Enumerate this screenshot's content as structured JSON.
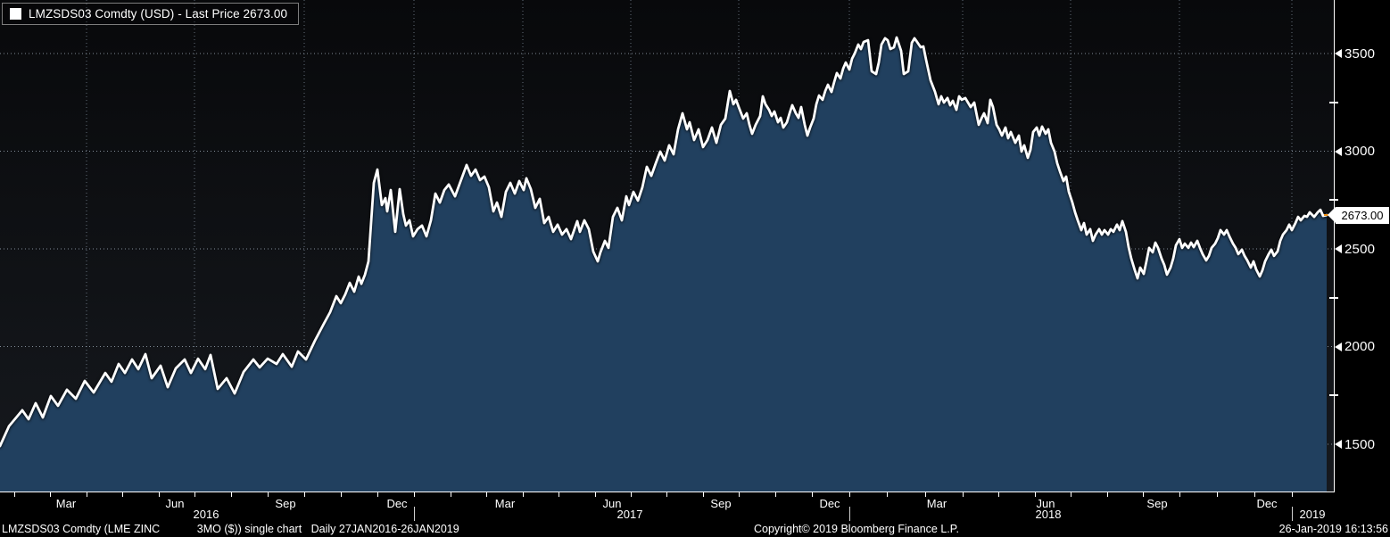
{
  "legend": {
    "label": "LMZSDS03 Comdty (USD) - Last Price 2673.00",
    "swatch_color": "#ffffff"
  },
  "colors": {
    "background": "#000000",
    "plot_bg_top": "#08090b",
    "plot_bg_bottom": "#16191e",
    "fill_top": "#0e2136",
    "fill_bottom": "#21405f",
    "line": "#ffffff",
    "grid_h": "rgba(168,181,195,0.75)",
    "grid_v": "rgba(148,163,180,0.65)",
    "last_price_accent": "#ef9115",
    "axis_text": "#ffffff"
  },
  "y_axis": {
    "ticks": [
      3500,
      3000,
      2500,
      2000,
      1500
    ],
    "minor_ticks": [
      3250,
      2750,
      2250,
      1750
    ],
    "last_price": "2673.00"
  },
  "x_axis": {
    "month_labels": [
      {
        "label": "Mar",
        "x": 74
      },
      {
        "label": "Jun",
        "x": 196
      },
      {
        "label": "Sep",
        "x": 320
      },
      {
        "label": "Dec",
        "x": 445
      },
      {
        "label": "Mar",
        "x": 566
      },
      {
        "label": "Jun",
        "x": 686
      },
      {
        "label": "Sep",
        "x": 808
      },
      {
        "label": "Dec",
        "x": 930
      },
      {
        "label": "Mar",
        "x": 1050
      },
      {
        "label": "Jun",
        "x": 1172
      },
      {
        "label": "Sep",
        "x": 1297
      },
      {
        "label": "Dec",
        "x": 1420
      }
    ],
    "year_labels": [
      {
        "label": "2016",
        "x": 231
      },
      {
        "label": "2017",
        "x": 706
      },
      {
        "label": "2018",
        "x": 1175
      },
      {
        "label": "2019",
        "x": 1471
      }
    ],
    "year_separators_x": [
      464,
      952,
      1448
    ],
    "month_ticks_x": [
      16,
      56,
      97,
      137,
      178,
      218,
      259,
      300,
      341,
      382,
      423,
      464,
      505,
      545,
      586,
      626,
      667,
      707,
      747,
      788,
      828,
      869,
      910,
      952,
      994,
      1037,
      1079,
      1119,
      1160,
      1200,
      1241,
      1281,
      1322,
      1364,
      1406,
      1448
    ]
  },
  "status_bar": {
    "left": "LMZSDS03 Comdty (LME ZINC            3MO ($)) single chart   Daily 27JAN2016-26JAN2019",
    "center": "Copyright© 2019 Bloomberg Finance L.P.",
    "right": "26-Jan-2019 16:13:56"
  },
  "chart_data": {
    "type": "area",
    "title": "LMZSDS03 Comdty (USD) - Last Price 2673.00",
    "x_domain": [
      "27JAN2016",
      "26JAN2019"
    ],
    "x_unit": "plot pixels 0-1495 spanning date domain",
    "y_ticks": [
      1500,
      2000,
      2500,
      3000,
      3500
    ],
    "y_minor_ticks": [
      1750,
      2250,
      2750,
      3250
    ],
    "grid": "horizontal dotted at major ticks, vertical dotted at quarter starts",
    "legend_position": "top-left",
    "last_price": 2673.0,
    "y_map": {
      "p1": 3500,
      "y1": 60,
      "p2": 1500,
      "y2": 498
    },
    "quarter_gridlines_x": [
      97,
      218,
      341,
      464,
      586,
      707,
      828,
      952,
      1079,
      1200,
      1322,
      1448
    ],
    "points": [
      [
        0,
        1491
      ],
      [
        10,
        1592
      ],
      [
        25,
        1674
      ],
      [
        32,
        1628
      ],
      [
        40,
        1710
      ],
      [
        48,
        1637
      ],
      [
        57,
        1747
      ],
      [
        65,
        1697
      ],
      [
        75,
        1779
      ],
      [
        85,
        1733
      ],
      [
        95,
        1824
      ],
      [
        105,
        1765
      ],
      [
        118,
        1865
      ],
      [
        125,
        1820
      ],
      [
        133,
        1911
      ],
      [
        140,
        1865
      ],
      [
        148,
        1934
      ],
      [
        155,
        1884
      ],
      [
        163,
        1961
      ],
      [
        170,
        1838
      ],
      [
        180,
        1902
      ],
      [
        188,
        1792
      ],
      [
        197,
        1888
      ],
      [
        207,
        1934
      ],
      [
        214,
        1865
      ],
      [
        222,
        1938
      ],
      [
        230,
        1884
      ],
      [
        236,
        1957
      ],
      [
        244,
        1783
      ],
      [
        254,
        1838
      ],
      [
        263,
        1760
      ],
      [
        273,
        1870
      ],
      [
        284,
        1934
      ],
      [
        291,
        1893
      ],
      [
        300,
        1938
      ],
      [
        310,
        1911
      ],
      [
        317,
        1961
      ],
      [
        327,
        1897
      ],
      [
        334,
        1975
      ],
      [
        343,
        1934
      ],
      [
        353,
        2030
      ],
      [
        363,
        2117
      ],
      [
        370,
        2176
      ],
      [
        377,
        2258
      ],
      [
        382,
        2222
      ],
      [
        387,
        2267
      ],
      [
        392,
        2326
      ],
      [
        397,
        2281
      ],
      [
        402,
        2358
      ],
      [
        405,
        2321
      ],
      [
        409,
        2367
      ],
      [
        413,
        2436
      ],
      [
        419,
        2838
      ],
      [
        423,
        2906
      ],
      [
        428,
        2724
      ],
      [
        432,
        2760
      ],
      [
        434,
        2692
      ],
      [
        438,
        2801
      ],
      [
        443,
        2587
      ],
      [
        448,
        2806
      ],
      [
        452,
        2678
      ],
      [
        455,
        2619
      ],
      [
        459,
        2646
      ],
      [
        463,
        2564
      ],
      [
        468,
        2601
      ],
      [
        473,
        2619
      ],
      [
        478,
        2564
      ],
      [
        483,
        2646
      ],
      [
        488,
        2783
      ],
      [
        493,
        2737
      ],
      [
        498,
        2801
      ],
      [
        503,
        2829
      ],
      [
        510,
        2769
      ],
      [
        523,
        2929
      ],
      [
        528,
        2874
      ],
      [
        533,
        2906
      ],
      [
        538,
        2852
      ],
      [
        543,
        2870
      ],
      [
        548,
        2815
      ],
      [
        553,
        2692
      ],
      [
        557,
        2737
      ],
      [
        562,
        2664
      ],
      [
        567,
        2792
      ],
      [
        572,
        2838
      ],
      [
        577,
        2783
      ],
      [
        582,
        2847
      ],
      [
        587,
        2801
      ],
      [
        590,
        2861
      ],
      [
        595,
        2806
      ],
      [
        600,
        2710
      ],
      [
        605,
        2756
      ],
      [
        610,
        2632
      ],
      [
        615,
        2664
      ],
      [
        620,
        2587
      ],
      [
        625,
        2624
      ],
      [
        630,
        2573
      ],
      [
        635,
        2601
      ],
      [
        640,
        2550
      ],
      [
        647,
        2642
      ],
      [
        650,
        2587
      ],
      [
        655,
        2646
      ],
      [
        660,
        2601
      ],
      [
        665,
        2486
      ],
      [
        670,
        2436
      ],
      [
        673,
        2482
      ],
      [
        678,
        2541
      ],
      [
        682,
        2505
      ],
      [
        687,
        2664
      ],
      [
        692,
        2710
      ],
      [
        697,
        2646
      ],
      [
        702,
        2769
      ],
      [
        705,
        2724
      ],
      [
        710,
        2792
      ],
      [
        715,
        2747
      ],
      [
        720,
        2815
      ],
      [
        725,
        2920
      ],
      [
        730,
        2874
      ],
      [
        735,
        2938
      ],
      [
        740,
        2998
      ],
      [
        745,
        2952
      ],
      [
        750,
        3030
      ],
      [
        755,
        2984
      ],
      [
        760,
        3112
      ],
      [
        765,
        3194
      ],
      [
        770,
        3112
      ],
      [
        773,
        3148
      ],
      [
        778,
        3057
      ],
      [
        783,
        3112
      ],
      [
        788,
        3021
      ],
      [
        793,
        3057
      ],
      [
        798,
        3121
      ],
      [
        803,
        3043
      ],
      [
        808,
        3135
      ],
      [
        813,
        3167
      ],
      [
        818,
        3308
      ],
      [
        822,
        3240
      ],
      [
        825,
        3263
      ],
      [
        828,
        3226
      ],
      [
        833,
        3167
      ],
      [
        837,
        3194
      ],
      [
        840,
        3135
      ],
      [
        843,
        3089
      ],
      [
        847,
        3135
      ],
      [
        852,
        3180
      ],
      [
        855,
        3281
      ],
      [
        858,
        3240
      ],
      [
        862,
        3212
      ],
      [
        865,
        3180
      ],
      [
        868,
        3203
      ],
      [
        872,
        3148
      ],
      [
        875,
        3171
      ],
      [
        878,
        3121
      ],
      [
        882,
        3148
      ],
      [
        885,
        3194
      ],
      [
        888,
        3235
      ],
      [
        892,
        3194
      ],
      [
        895,
        3171
      ],
      [
        898,
        3226
      ],
      [
        902,
        3135
      ],
      [
        905,
        3080
      ],
      [
        908,
        3121
      ],
      [
        912,
        3167
      ],
      [
        915,
        3240
      ],
      [
        918,
        3285
      ],
      [
        922,
        3263
      ],
      [
        925,
        3308
      ],
      [
        928,
        3340
      ],
      [
        932,
        3303
      ],
      [
        935,
        3354
      ],
      [
        938,
        3400
      ],
      [
        942,
        3372
      ],
      [
        945,
        3422
      ],
      [
        948,
        3454
      ],
      [
        952,
        3418
      ],
      [
        955,
        3473
      ],
      [
        958,
        3500
      ],
      [
        962,
        3546
      ],
      [
        965,
        3523
      ],
      [
        968,
        3559
      ],
      [
        973,
        3568
      ],
      [
        977,
        3409
      ],
      [
        982,
        3395
      ],
      [
        985,
        3454
      ],
      [
        988,
        3546
      ],
      [
        992,
        3578
      ],
      [
        995,
        3568
      ],
      [
        998,
        3523
      ],
      [
        1002,
        3532
      ],
      [
        1005,
        3582
      ],
      [
        1010,
        3514
      ],
      [
        1013,
        3395
      ],
      [
        1018,
        3409
      ],
      [
        1022,
        3555
      ],
      [
        1025,
        3578
      ],
      [
        1028,
        3559
      ],
      [
        1032,
        3532
      ],
      [
        1035,
        3536
      ],
      [
        1038,
        3468
      ],
      [
        1043,
        3363
      ],
      [
        1048,
        3304
      ],
      [
        1052,
        3240
      ],
      [
        1055,
        3281
      ],
      [
        1058,
        3249
      ],
      [
        1062,
        3272
      ],
      [
        1065,
        3235
      ],
      [
        1068,
        3258
      ],
      [
        1072,
        3212
      ],
      [
        1075,
        3281
      ],
      [
        1078,
        3263
      ],
      [
        1082,
        3272
      ],
      [
        1085,
        3249
      ],
      [
        1088,
        3226
      ],
      [
        1092,
        3249
      ],
      [
        1097,
        3135
      ],
      [
        1100,
        3167
      ],
      [
        1103,
        3194
      ],
      [
        1107,
        3144
      ],
      [
        1110,
        3263
      ],
      [
        1113,
        3226
      ],
      [
        1117,
        3135
      ],
      [
        1120,
        3112
      ],
      [
        1123,
        3080
      ],
      [
        1127,
        3121
      ],
      [
        1130,
        3066
      ],
      [
        1133,
        3098
      ],
      [
        1138,
        3043
      ],
      [
        1142,
        3080
      ],
      [
        1145,
        2998
      ],
      [
        1148,
        3030
      ],
      [
        1152,
        2966
      ],
      [
        1155,
        3007
      ],
      [
        1158,
        3098
      ],
      [
        1162,
        3121
      ],
      [
        1165,
        3080
      ],
      [
        1168,
        3126
      ],
      [
        1172,
        3089
      ],
      [
        1175,
        3112
      ],
      [
        1178,
        3043
      ],
      [
        1182,
        2998
      ],
      [
        1185,
        2938
      ],
      [
        1188,
        2897
      ],
      [
        1192,
        2847
      ],
      [
        1195,
        2870
      ],
      [
        1198,
        2792
      ],
      [
        1202,
        2737
      ],
      [
        1205,
        2687
      ],
      [
        1208,
        2646
      ],
      [
        1212,
        2596
      ],
      [
        1215,
        2632
      ],
      [
        1218,
        2573
      ],
      [
        1222,
        2601
      ],
      [
        1225,
        2541
      ],
      [
        1228,
        2573
      ],
      [
        1232,
        2601
      ],
      [
        1235,
        2573
      ],
      [
        1238,
        2596
      ],
      [
        1242,
        2573
      ],
      [
        1245,
        2601
      ],
      [
        1248,
        2587
      ],
      [
        1252,
        2624
      ],
      [
        1255,
        2596
      ],
      [
        1258,
        2642
      ],
      [
        1262,
        2587
      ],
      [
        1265,
        2509
      ],
      [
        1268,
        2450
      ],
      [
        1272,
        2390
      ],
      [
        1275,
        2349
      ],
      [
        1278,
        2404
      ],
      [
        1282,
        2372
      ],
      [
        1285,
        2436
      ],
      [
        1288,
        2505
      ],
      [
        1292,
        2482
      ],
      [
        1295,
        2532
      ],
      [
        1298,
        2505
      ],
      [
        1302,
        2450
      ],
      [
        1305,
        2418
      ],
      [
        1308,
        2368
      ],
      [
        1312,
        2404
      ],
      [
        1315,
        2450
      ],
      [
        1318,
        2518
      ],
      [
        1322,
        2550
      ],
      [
        1325,
        2505
      ],
      [
        1328,
        2527
      ],
      [
        1332,
        2505
      ],
      [
        1335,
        2532
      ],
      [
        1338,
        2509
      ],
      [
        1342,
        2541
      ],
      [
        1345,
        2505
      ],
      [
        1348,
        2473
      ],
      [
        1352,
        2441
      ],
      [
        1355,
        2464
      ],
      [
        1358,
        2505
      ],
      [
        1362,
        2527
      ],
      [
        1365,
        2555
      ],
      [
        1368,
        2596
      ],
      [
        1372,
        2573
      ],
      [
        1375,
        2596
      ],
      [
        1378,
        2564
      ],
      [
        1382,
        2527
      ],
      [
        1385,
        2505
      ],
      [
        1388,
        2473
      ],
      [
        1392,
        2496
      ],
      [
        1395,
        2464
      ],
      [
        1398,
        2441
      ],
      [
        1402,
        2404
      ],
      [
        1405,
        2436
      ],
      [
        1408,
        2395
      ],
      [
        1412,
        2359
      ],
      [
        1415,
        2390
      ],
      [
        1418,
        2436
      ],
      [
        1422,
        2473
      ],
      [
        1425,
        2496
      ],
      [
        1428,
        2464
      ],
      [
        1432,
        2487
      ],
      [
        1435,
        2541
      ],
      [
        1438,
        2573
      ],
      [
        1442,
        2596
      ],
      [
        1445,
        2624
      ],
      [
        1448,
        2596
      ],
      [
        1452,
        2632
      ],
      [
        1455,
        2664
      ],
      [
        1458,
        2646
      ],
      [
        1462,
        2669
      ],
      [
        1465,
        2664
      ],
      [
        1468,
        2687
      ],
      [
        1473,
        2664
      ],
      [
        1477,
        2687
      ],
      [
        1480,
        2700
      ],
      [
        1483,
        2669
      ],
      [
        1487,
        2673
      ]
    ]
  }
}
